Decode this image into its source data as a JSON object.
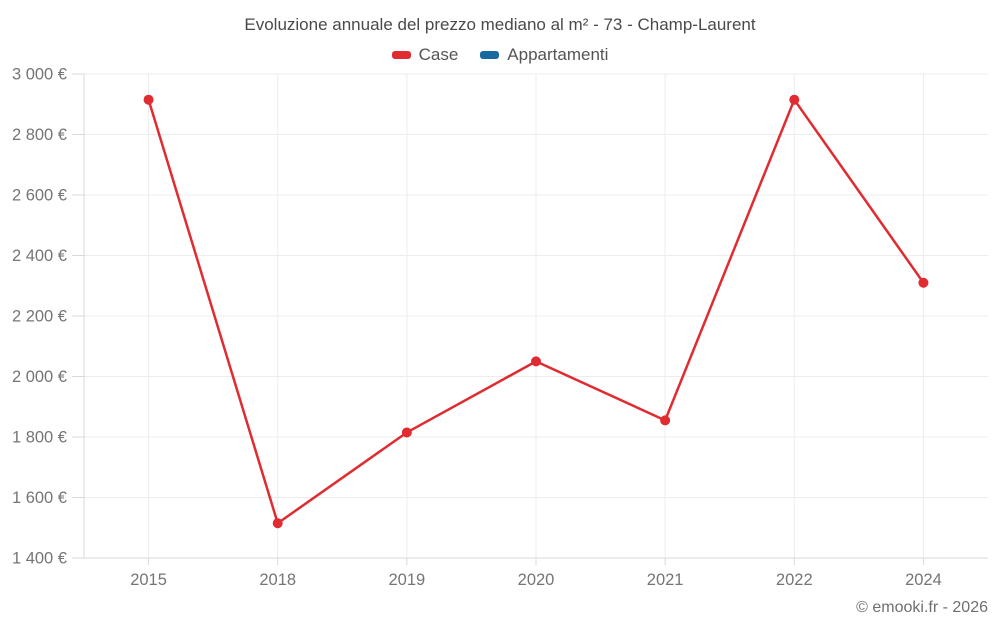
{
  "page": {
    "background": "#ffffff",
    "footer": "© emooki.fr - 2026"
  },
  "chart_data": {
    "type": "line",
    "title": "Evoluzione annuale del prezzo mediano al m² - 73 - Champ-Laurent",
    "categories": [
      "2015",
      "2018",
      "2019",
      "2020",
      "2021",
      "2022",
      "2024"
    ],
    "series": [
      {
        "name": "Case",
        "color": "#e02b31",
        "values": [
          2915,
          1515,
          1815,
          2050,
          1855,
          2915,
          2310
        ]
      },
      {
        "name": "Appartamenti",
        "color": "#1769a0",
        "values": []
      }
    ],
    "ylim": [
      1400,
      3000
    ],
    "y_ticks": [
      {
        "v": 1400,
        "label": "1 400 €"
      },
      {
        "v": 1600,
        "label": "1 600 €"
      },
      {
        "v": 1800,
        "label": "1 800 €"
      },
      {
        "v": 2000,
        "label": "2 000 €"
      },
      {
        "v": 2200,
        "label": "2 200 €"
      },
      {
        "v": 2400,
        "label": "2 400 €"
      },
      {
        "v": 2600,
        "label": "2 600 €"
      },
      {
        "v": 2800,
        "label": "2 800 €"
      },
      {
        "v": 3000,
        "label": "3 000 €"
      }
    ],
    "grid": true,
    "legend_position": "top",
    "colors": {
      "grid": "#ececec",
      "axis": "#d9d9d9",
      "tick_label": "#757575",
      "title": "#4a4a4a"
    }
  }
}
